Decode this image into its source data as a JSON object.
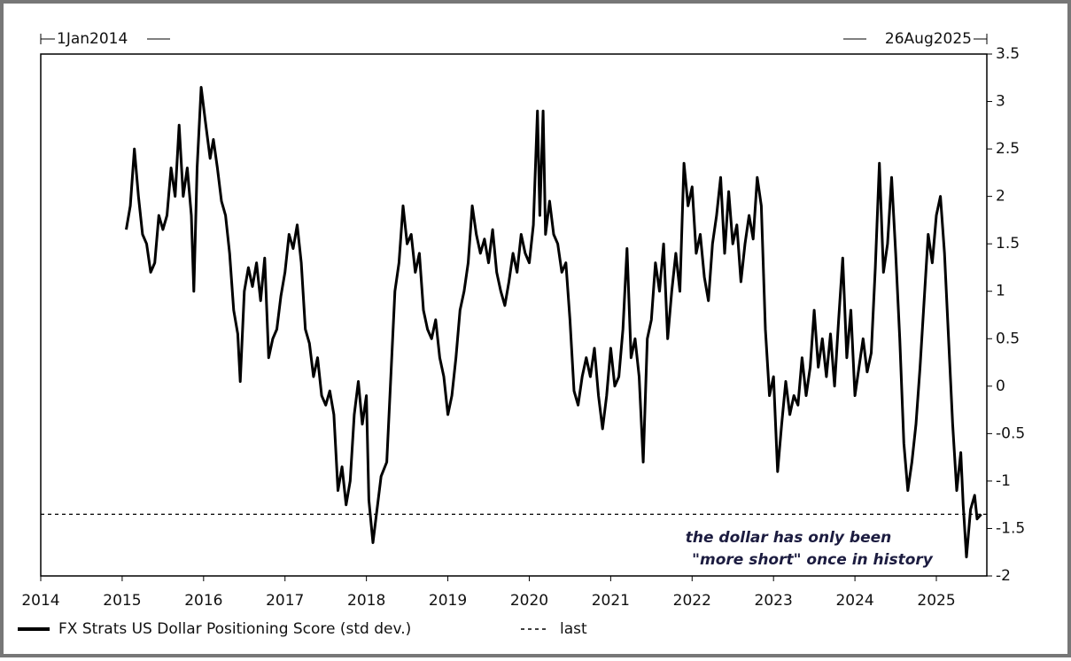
{
  "chart_data": {
    "type": "line",
    "start_label": "1Jan2014",
    "end_label": "26Aug2025",
    "annotation": [
      "the dollar has only been",
      "\"more short\"  once in history"
    ],
    "xlim": [
      2014,
      2025.62
    ],
    "xticks": [
      2014,
      2015,
      2016,
      2017,
      2018,
      2019,
      2020,
      2021,
      2022,
      2023,
      2024,
      2025
    ],
    "ylim": [
      -2,
      3.5
    ],
    "yticks": [
      3.5,
      3,
      2.5,
      2,
      1.5,
      1,
      0.5,
      0,
      -0.5,
      -1,
      -1.5,
      -2
    ],
    "y_axis_side": "right",
    "reference_line": {
      "name": "last",
      "value": -1.35,
      "color": "#000000"
    },
    "series": [
      {
        "name": "FX Strats US Dollar Positioning Score (std dev.)",
        "color": "#000000",
        "x": [
          2015.05,
          2015.1,
          2015.15,
          2015.2,
          2015.25,
          2015.3,
          2015.35,
          2015.4,
          2015.45,
          2015.5,
          2015.55,
          2015.6,
          2015.65,
          2015.7,
          2015.75,
          2015.8,
          2015.85,
          2015.88,
          2015.92,
          2015.97,
          2016.02,
          2016.08,
          2016.12,
          2016.17,
          2016.22,
          2016.27,
          2016.32,
          2016.37,
          2016.42,
          2016.45,
          2016.5,
          2016.55,
          2016.6,
          2016.65,
          2016.7,
          2016.75,
          2016.8,
          2016.85,
          2016.9,
          2016.95,
          2017.0,
          2017.05,
          2017.1,
          2017.15,
          2017.2,
          2017.25,
          2017.3,
          2017.35,
          2017.4,
          2017.45,
          2017.5,
          2017.55,
          2017.6,
          2017.65,
          2017.7,
          2017.75,
          2017.8,
          2017.85,
          2017.9,
          2017.95,
          2018.0,
          2018.03,
          2018.08,
          2018.13,
          2018.18,
          2018.25,
          2018.3,
          2018.35,
          2018.4,
          2018.45,
          2018.5,
          2018.55,
          2018.6,
          2018.65,
          2018.7,
          2018.75,
          2018.8,
          2018.85,
          2018.9,
          2018.95,
          2019.0,
          2019.05,
          2019.1,
          2019.15,
          2019.2,
          2019.25,
          2019.3,
          2019.35,
          2019.4,
          2019.45,
          2019.5,
          2019.55,
          2019.6,
          2019.65,
          2019.7,
          2019.75,
          2019.8,
          2019.85,
          2019.9,
          2019.95,
          2020.0,
          2020.05,
          2020.1,
          2020.13,
          2020.17,
          2020.2,
          2020.25,
          2020.3,
          2020.35,
          2020.4,
          2020.45,
          2020.5,
          2020.55,
          2020.6,
          2020.65,
          2020.7,
          2020.75,
          2020.8,
          2020.85,
          2020.9,
          2020.95,
          2021.0,
          2021.05,
          2021.1,
          2021.15,
          2021.2,
          2021.25,
          2021.3,
          2021.35,
          2021.4,
          2021.45,
          2021.5,
          2021.55,
          2021.6,
          2021.65,
          2021.7,
          2021.75,
          2021.8,
          2021.85,
          2021.9,
          2021.95,
          2022.0,
          2022.05,
          2022.1,
          2022.15,
          2022.2,
          2022.25,
          2022.3,
          2022.35,
          2022.4,
          2022.45,
          2022.5,
          2022.55,
          2022.6,
          2022.65,
          2022.7,
          2022.75,
          2022.8,
          2022.85,
          2022.9,
          2022.95,
          2023.0,
          2023.05,
          2023.1,
          2023.15,
          2023.2,
          2023.25,
          2023.3,
          2023.35,
          2023.4,
          2023.45,
          2023.5,
          2023.55,
          2023.6,
          2023.65,
          2023.7,
          2023.75,
          2023.8,
          2023.85,
          2023.9,
          2023.95,
          2024.0,
          2024.05,
          2024.1,
          2024.15,
          2024.2,
          2024.25,
          2024.3,
          2024.35,
          2024.4,
          2024.45,
          2024.5,
          2024.55,
          2024.6,
          2024.65,
          2024.7,
          2024.75,
          2024.8,
          2024.85,
          2024.9,
          2024.95,
          2025.0,
          2025.05,
          2025.1,
          2025.15,
          2025.2,
          2025.25,
          2025.3,
          2025.33,
          2025.37,
          2025.42,
          2025.47,
          2025.5,
          2025.55
        ],
        "values": [
          1.65,
          1.9,
          2.5,
          2.0,
          1.6,
          1.5,
          1.2,
          1.3,
          1.8,
          1.65,
          1.8,
          2.3,
          2.0,
          2.75,
          2.0,
          2.3,
          1.8,
          1.0,
          2.3,
          3.15,
          2.8,
          2.4,
          2.6,
          2.3,
          1.95,
          1.8,
          1.4,
          0.8,
          0.55,
          0.05,
          1.0,
          1.25,
          1.05,
          1.3,
          0.9,
          1.35,
          0.3,
          0.5,
          0.6,
          0.95,
          1.2,
          1.6,
          1.45,
          1.7,
          1.3,
          0.6,
          0.45,
          0.1,
          0.3,
          -0.1,
          -0.2,
          -0.05,
          -0.3,
          -1.1,
          -0.85,
          -1.25,
          -1.0,
          -0.3,
          0.05,
          -0.4,
          -0.1,
          -1.2,
          -1.65,
          -1.3,
          -0.95,
          -0.8,
          0.1,
          1.0,
          1.3,
          1.9,
          1.5,
          1.6,
          1.2,
          1.4,
          0.8,
          0.6,
          0.5,
          0.7,
          0.3,
          0.1,
          -0.3,
          -0.1,
          0.3,
          0.8,
          1.0,
          1.3,
          1.9,
          1.6,
          1.4,
          1.55,
          1.3,
          1.65,
          1.2,
          1.0,
          0.85,
          1.1,
          1.4,
          1.2,
          1.6,
          1.4,
          1.3,
          1.7,
          2.9,
          1.8,
          2.9,
          1.6,
          1.95,
          1.6,
          1.5,
          1.2,
          1.3,
          0.7,
          -0.05,
          -0.2,
          0.1,
          0.3,
          0.1,
          0.4,
          -0.1,
          -0.45,
          -0.1,
          0.4,
          0.0,
          0.1,
          0.6,
          1.45,
          0.3,
          0.5,
          0.1,
          -0.8,
          0.5,
          0.7,
          1.3,
          1.0,
          1.5,
          0.5,
          1.0,
          1.4,
          1.0,
          2.35,
          1.9,
          2.1,
          1.4,
          1.6,
          1.15,
          0.9,
          1.5,
          1.8,
          2.2,
          1.4,
          2.05,
          1.5,
          1.7,
          1.1,
          1.5,
          1.8,
          1.55,
          2.2,
          1.9,
          0.6,
          -0.1,
          0.1,
          -0.9,
          -0.4,
          0.05,
          -0.3,
          -0.1,
          -0.2,
          0.3,
          -0.1,
          0.2,
          0.8,
          0.2,
          0.5,
          0.1,
          0.55,
          0.0,
          0.7,
          1.35,
          0.3,
          0.8,
          -0.1,
          0.2,
          0.5,
          0.15,
          0.35,
          1.25,
          2.35,
          1.2,
          1.5,
          2.2,
          1.4,
          0.5,
          -0.6,
          -1.1,
          -0.8,
          -0.4,
          0.2,
          0.9,
          1.6,
          1.3,
          1.8,
          2.0,
          1.4,
          0.5,
          -0.4,
          -1.1,
          -0.7,
          -1.25,
          -1.8,
          -1.3,
          -1.15,
          -1.4,
          -1.35
        ]
      }
    ]
  }
}
